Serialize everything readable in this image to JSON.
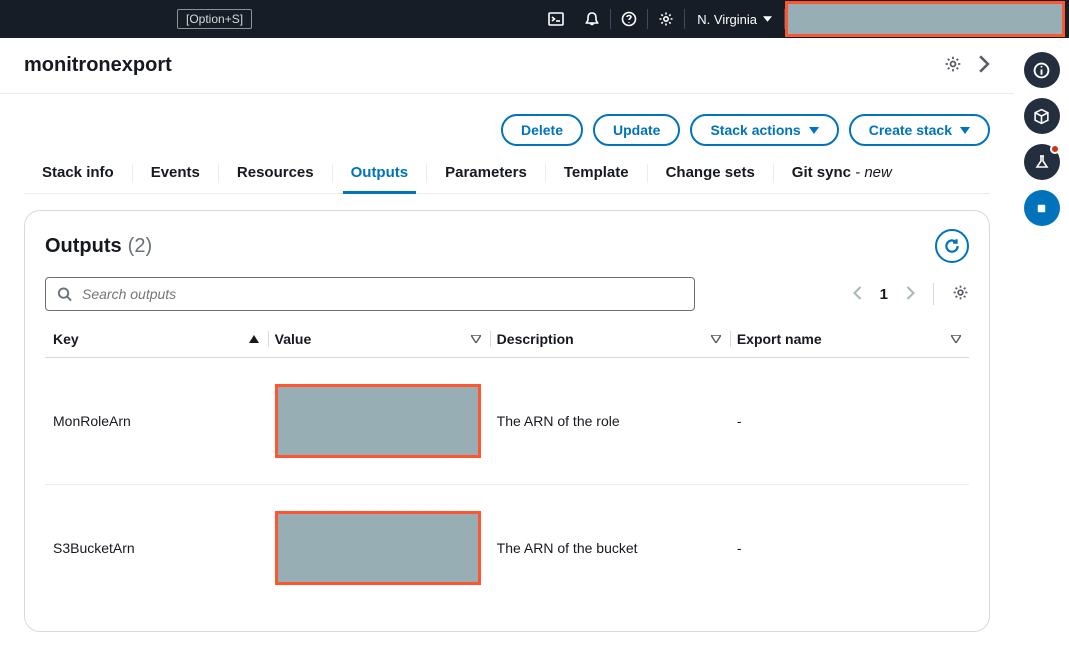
{
  "topbar": {
    "shortcut": "[Option+S]",
    "region": "N. Virginia"
  },
  "header": {
    "stack_name": "monitronexport"
  },
  "actions": {
    "delete": "Delete",
    "update": "Update",
    "stack_actions": "Stack actions",
    "create_stack": "Create stack"
  },
  "tabs": {
    "stack_info": "Stack info",
    "events": "Events",
    "resources": "Resources",
    "outputs": "Outputs",
    "parameters": "Parameters",
    "template": "Template",
    "change_sets": "Change sets",
    "git_sync": "Git sync",
    "git_sync_badge": "- new",
    "active": "outputs"
  },
  "outputs_panel": {
    "title": "Outputs",
    "count": "(2)",
    "search_placeholder": "Search outputs",
    "page": "1",
    "columns": {
      "key": "Key",
      "value": "Value",
      "description": "Description",
      "export_name": "Export name"
    },
    "sort": {
      "column": "key",
      "direction": "asc"
    },
    "rows": [
      {
        "key": "MonRoleArn",
        "value_redacted": true,
        "description": "The ARN of the role",
        "export_name": "-"
      },
      {
        "key": "S3BucketArn",
        "value_redacted": true,
        "description": "The ARN of the bucket",
        "export_name": "-"
      }
    ]
  },
  "colors": {
    "primary": "#0073bb",
    "topbar_bg": "#161d26",
    "rail_bg": "#232f3e",
    "redact_fill": "#97aeb4",
    "redact_border": "#ff5630",
    "border": "#d5dbdb"
  }
}
